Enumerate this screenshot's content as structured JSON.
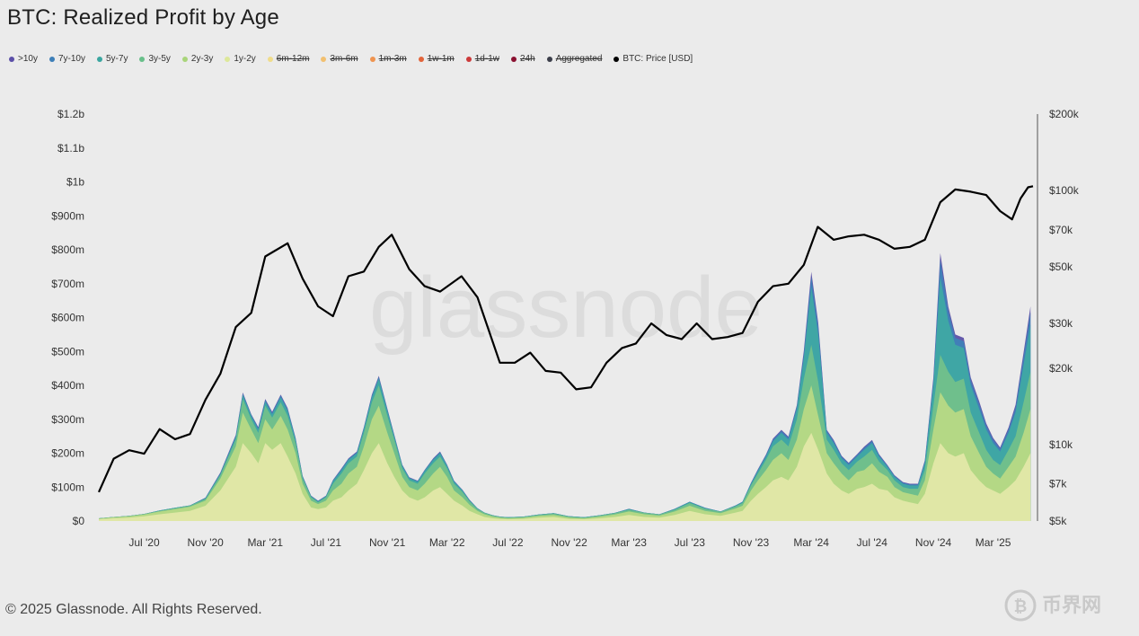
{
  "title": "BTC: Realized Profit by Age",
  "legend": [
    {
      "label": ">10y",
      "color": "#5b4fa8",
      "active": true
    },
    {
      "label": "7y-10y",
      "color": "#3d7fb8",
      "active": true
    },
    {
      "label": "5y-7y",
      "color": "#3aa6a0",
      "active": true
    },
    {
      "label": "3y-5y",
      "color": "#68bf8a",
      "active": true
    },
    {
      "label": "2y-3y",
      "color": "#a9d57a",
      "active": true
    },
    {
      "label": "1y-2y",
      "color": "#dde89a",
      "active": true
    },
    {
      "label": "6m-12m",
      "color": "#f0dc8a",
      "active": false
    },
    {
      "label": "3m-6m",
      "color": "#f2c070",
      "active": false
    },
    {
      "label": "1m-3m",
      "color": "#ef9450",
      "active": false
    },
    {
      "label": "1w-1m",
      "color": "#e2643a",
      "active": false
    },
    {
      "label": "1d-1w",
      "color": "#cc3a3a",
      "active": false
    },
    {
      "label": "24h",
      "color": "#8a1030",
      "active": false
    },
    {
      "label": "Aggregated",
      "color": "#3b3e4a",
      "active": false
    },
    {
      "label": "BTC: Price [USD]",
      "color": "#000000",
      "active": true
    }
  ],
  "footer": "© 2025 Glassnode. All Rights Reserved.",
  "watermark": "glassnode",
  "corner_logo_text": "币界网",
  "chart_data": {
    "type": "area",
    "title": "BTC: Realized Profit by Age",
    "x_ticks": [
      "Jul '20",
      "Nov '20",
      "Mar '21",
      "Jul '21",
      "Nov '21",
      "Mar '22",
      "Jul '22",
      "Nov '22",
      "Mar '23",
      "Jul '23",
      "Nov '23",
      "Mar '24",
      "Jul '24",
      "Nov '24",
      "Mar '25"
    ],
    "y_left_ticks": [
      "$0",
      "$100m",
      "$200m",
      "$300m",
      "$400m",
      "$500m",
      "$600m",
      "$700m",
      "$800m",
      "$900m",
      "$1b",
      "$1.1b",
      "$1.2b"
    ],
    "y_left_range": [
      0,
      1200
    ],
    "y_left_unit": "USD millions",
    "y_right_ticks": [
      "$5k",
      "$7k",
      "$10k",
      "$20k",
      "$30k",
      "$50k",
      "$70k",
      "$100k",
      "$200k"
    ],
    "y_right_range": [
      5000,
      200000
    ],
    "y_right_scale": "log",
    "x_range": [
      "2020-04-01",
      "2025-05-20"
    ],
    "x": [
      "2020-04-01",
      "2020-05-01",
      "2020-06-01",
      "2020-07-01",
      "2020-08-01",
      "2020-09-01",
      "2020-10-01",
      "2020-11-01",
      "2020-12-01",
      "2021-01-01",
      "2021-01-15",
      "2021-02-01",
      "2021-02-15",
      "2021-03-01",
      "2021-03-15",
      "2021-04-01",
      "2021-04-15",
      "2021-05-01",
      "2021-05-15",
      "2021-06-01",
      "2021-06-15",
      "2021-07-01",
      "2021-07-15",
      "2021-08-01",
      "2021-08-15",
      "2021-09-01",
      "2021-09-15",
      "2021-10-01",
      "2021-10-15",
      "2021-11-01",
      "2021-11-15",
      "2021-12-01",
      "2021-12-15",
      "2022-01-01",
      "2022-01-15",
      "2022-02-01",
      "2022-02-15",
      "2022-03-01",
      "2022-03-15",
      "2022-04-01",
      "2022-04-15",
      "2022-05-01",
      "2022-05-15",
      "2022-06-01",
      "2022-06-15",
      "2022-07-01",
      "2022-08-01",
      "2022-09-01",
      "2022-10-01",
      "2022-11-01",
      "2022-12-01",
      "2023-01-01",
      "2023-02-01",
      "2023-03-01",
      "2023-04-01",
      "2023-05-01",
      "2023-06-01",
      "2023-07-01",
      "2023-08-01",
      "2023-09-01",
      "2023-10-01",
      "2023-10-15",
      "2023-11-01",
      "2023-11-15",
      "2023-12-01",
      "2023-12-15",
      "2024-01-01",
      "2024-01-15",
      "2024-02-01",
      "2024-02-15",
      "2024-03-01",
      "2024-03-15",
      "2024-04-01",
      "2024-04-15",
      "2024-05-01",
      "2024-05-15",
      "2024-06-01",
      "2024-06-15",
      "2024-07-01",
      "2024-07-15",
      "2024-08-01",
      "2024-08-15",
      "2024-09-01",
      "2024-09-15",
      "2024-10-01",
      "2024-10-15",
      "2024-11-01",
      "2024-11-15",
      "2024-12-01",
      "2024-12-15",
      "2025-01-01",
      "2025-01-15",
      "2025-02-01",
      "2025-02-15",
      "2025-03-01",
      "2025-03-15",
      "2025-04-01",
      "2025-04-15",
      "2025-05-01",
      "2025-05-15"
    ],
    "series": [
      {
        "name": "1y-2y",
        "color": "#e3e8a8",
        "values": [
          5,
          8,
          10,
          14,
          20,
          25,
          30,
          45,
          90,
          160,
          230,
          200,
          170,
          230,
          210,
          230,
          190,
          140,
          80,
          40,
          35,
          40,
          60,
          70,
          90,
          110,
          150,
          200,
          230,
          170,
          130,
          90,
          70,
          60,
          70,
          90,
          100,
          80,
          60,
          45,
          30,
          20,
          12,
          8,
          6,
          5,
          6,
          10,
          12,
          6,
          5,
          8,
          12,
          18,
          12,
          10,
          18,
          30,
          20,
          15,
          25,
          30,
          60,
          80,
          100,
          120,
          130,
          120,
          160,
          220,
          260,
          210,
          140,
          110,
          90,
          80,
          95,
          100,
          110,
          95,
          90,
          70,
          60,
          55,
          50,
          80,
          170,
          230,
          200,
          190,
          200,
          150,
          120,
          100,
          90,
          80,
          100,
          120,
          160,
          200
        ]
      },
      {
        "name": "2y-3y",
        "color": "#b7d985",
        "values": [
          2,
          3,
          4,
          5,
          8,
          10,
          12,
          15,
          35,
          60,
          90,
          70,
          60,
          70,
          60,
          80,
          80,
          60,
          30,
          20,
          15,
          20,
          30,
          40,
          50,
          50,
          70,
          100,
          110,
          90,
          70,
          40,
          30,
          30,
          40,
          50,
          60,
          50,
          30,
          25,
          18,
          10,
          8,
          5,
          4,
          3,
          4,
          5,
          6,
          4,
          3,
          5,
          7,
          10,
          8,
          6,
          10,
          15,
          10,
          8,
          12,
          15,
          30,
          40,
          50,
          60,
          70,
          60,
          80,
          110,
          140,
          100,
          60,
          60,
          50,
          40,
          50,
          50,
          60,
          50,
          40,
          30,
          25,
          25,
          25,
          40,
          100,
          150,
          140,
          130,
          130,
          100,
          80,
          60,
          50,
          45,
          60,
          70,
          100,
          130
        ]
      },
      {
        "name": "3y-5y",
        "color": "#72c08a",
        "values": [
          1,
          1,
          1,
          2,
          2,
          3,
          3,
          5,
          10,
          20,
          40,
          30,
          30,
          40,
          35,
          40,
          40,
          30,
          15,
          10,
          5,
          10,
          20,
          30,
          30,
          30,
          40,
          50,
          60,
          50,
          40,
          25,
          20,
          20,
          30,
          30,
          30,
          25,
          20,
          15,
          10,
          5,
          4,
          3,
          2,
          2,
          2,
          3,
          4,
          3,
          2,
          3,
          4,
          5,
          4,
          3,
          5,
          8,
          6,
          4,
          6,
          8,
          15,
          20,
          30,
          40,
          40,
          40,
          60,
          90,
          120,
          100,
          40,
          40,
          30,
          30,
          30,
          40,
          40,
          30,
          20,
          20,
          15,
          15,
          20,
          30,
          70,
          110,
          100,
          90,
          90,
          70,
          60,
          50,
          40,
          40,
          50,
          60,
          90,
          110
        ]
      },
      {
        "name": "5y-7y",
        "color": "#3fa9a3",
        "values": [
          0,
          0,
          0,
          0,
          1,
          1,
          1,
          2,
          4,
          8,
          12,
          10,
          10,
          12,
          10,
          15,
          15,
          10,
          5,
          3,
          3,
          3,
          8,
          10,
          10,
          10,
          12,
          15,
          20,
          15,
          10,
          8,
          6,
          6,
          8,
          10,
          10,
          8,
          6,
          5,
          3,
          2,
          1,
          1,
          1,
          1,
          1,
          1,
          1,
          1,
          1,
          1,
          1,
          2,
          1,
          1,
          2,
          3,
          2,
          1,
          2,
          3,
          5,
          8,
          10,
          15,
          20,
          20,
          30,
          60,
          170,
          140,
          20,
          20,
          15,
          15,
          15,
          20,
          20,
          15,
          10,
          10,
          10,
          10,
          10,
          20,
          60,
          230,
          150,
          110,
          90,
          80,
          70,
          60,
          50,
          40,
          50,
          70,
          110,
          140
        ]
      },
      {
        "name": "7y-10y",
        "color": "#3f82b8",
        "values": [
          0,
          0,
          0,
          0,
          0,
          0,
          0,
          1,
          2,
          3,
          4,
          3,
          4,
          5,
          4,
          5,
          5,
          3,
          2,
          1,
          1,
          1,
          2,
          3,
          3,
          3,
          3,
          5,
          5,
          4,
          3,
          2,
          2,
          2,
          2,
          3,
          3,
          2,
          2,
          1,
          1,
          1,
          0,
          0,
          0,
          0,
          0,
          0,
          0,
          0,
          0,
          0,
          0,
          1,
          0,
          0,
          1,
          1,
          1,
          0,
          1,
          1,
          2,
          3,
          4,
          5,
          6,
          6,
          8,
          15,
          30,
          25,
          6,
          6,
          5,
          5,
          5,
          6,
          6,
          5,
          3,
          3,
          3,
          3,
          3,
          6,
          15,
          50,
          30,
          20,
          20,
          15,
          15,
          12,
          10,
          8,
          10,
          15,
          25,
          35
        ]
      },
      {
        "name": ">10y",
        "color": "#5d52a8",
        "values": [
          0,
          0,
          0,
          0,
          0,
          0,
          0,
          1,
          2,
          3,
          3,
          2,
          3,
          3,
          3,
          3,
          3,
          2,
          1,
          1,
          1,
          1,
          1,
          2,
          2,
          2,
          2,
          3,
          3,
          3,
          2,
          1,
          1,
          1,
          1,
          2,
          2,
          1,
          1,
          1,
          1,
          0,
          0,
          0,
          0,
          0,
          0,
          0,
          0,
          0,
          0,
          0,
          0,
          0,
          0,
          0,
          0,
          0,
          0,
          0,
          0,
          0,
          1,
          2,
          2,
          3,
          3,
          3,
          4,
          8,
          15,
          10,
          3,
          3,
          2,
          2,
          2,
          3,
          3,
          2,
          2,
          2,
          2,
          2,
          2,
          3,
          8,
          20,
          12,
          10,
          10,
          8,
          8,
          6,
          5,
          4,
          6,
          8,
          12,
          18
        ]
      }
    ],
    "price_series": {
      "name": "BTC: Price [USD]",
      "x": [
        "2020-04-01",
        "2020-05-01",
        "2020-06-01",
        "2020-07-01",
        "2020-08-01",
        "2020-09-01",
        "2020-10-01",
        "2020-11-01",
        "2020-12-01",
        "2021-01-01",
        "2021-02-01",
        "2021-03-01",
        "2021-04-15",
        "2021-05-15",
        "2021-06-15",
        "2021-07-15",
        "2021-08-15",
        "2021-09-15",
        "2021-10-15",
        "2021-11-10",
        "2021-12-15",
        "2022-01-15",
        "2022-02-15",
        "2022-03-30",
        "2022-05-01",
        "2022-06-15",
        "2022-07-15",
        "2022-08-15",
        "2022-09-15",
        "2022-10-15",
        "2022-11-15",
        "2022-12-15",
        "2023-01-15",
        "2023-02-15",
        "2023-03-15",
        "2023-04-15",
        "2023-05-15",
        "2023-06-15",
        "2023-07-15",
        "2023-08-15",
        "2023-09-15",
        "2023-10-15",
        "2023-11-15",
        "2023-12-15",
        "2024-01-15",
        "2024-02-15",
        "2024-03-14",
        "2024-04-15",
        "2024-05-15",
        "2024-06-15",
        "2024-07-15",
        "2024-08-15",
        "2024-09-15",
        "2024-10-15",
        "2024-11-15",
        "2024-12-15",
        "2025-01-15",
        "2025-02-15",
        "2025-03-15",
        "2025-04-08",
        "2025-04-25",
        "2025-05-10",
        "2025-05-20"
      ],
      "values": [
        6500,
        8800,
        9500,
        9200,
        11500,
        10500,
        11000,
        15000,
        19000,
        29000,
        33000,
        55000,
        62000,
        45000,
        35000,
        32000,
        46000,
        48000,
        60000,
        67000,
        49000,
        42000,
        40000,
        46000,
        38000,
        21000,
        21000,
        23000,
        19500,
        19200,
        16500,
        16800,
        21000,
        24000,
        25000,
        30000,
        27000,
        26000,
        30000,
        26000,
        26500,
        27500,
        36500,
        42000,
        43000,
        51000,
        72000,
        64000,
        66000,
        67000,
        64000,
        59000,
        60000,
        64000,
        90000,
        101000,
        99000,
        96000,
        83000,
        77000,
        93000,
        103000,
        104000
      ]
    }
  }
}
